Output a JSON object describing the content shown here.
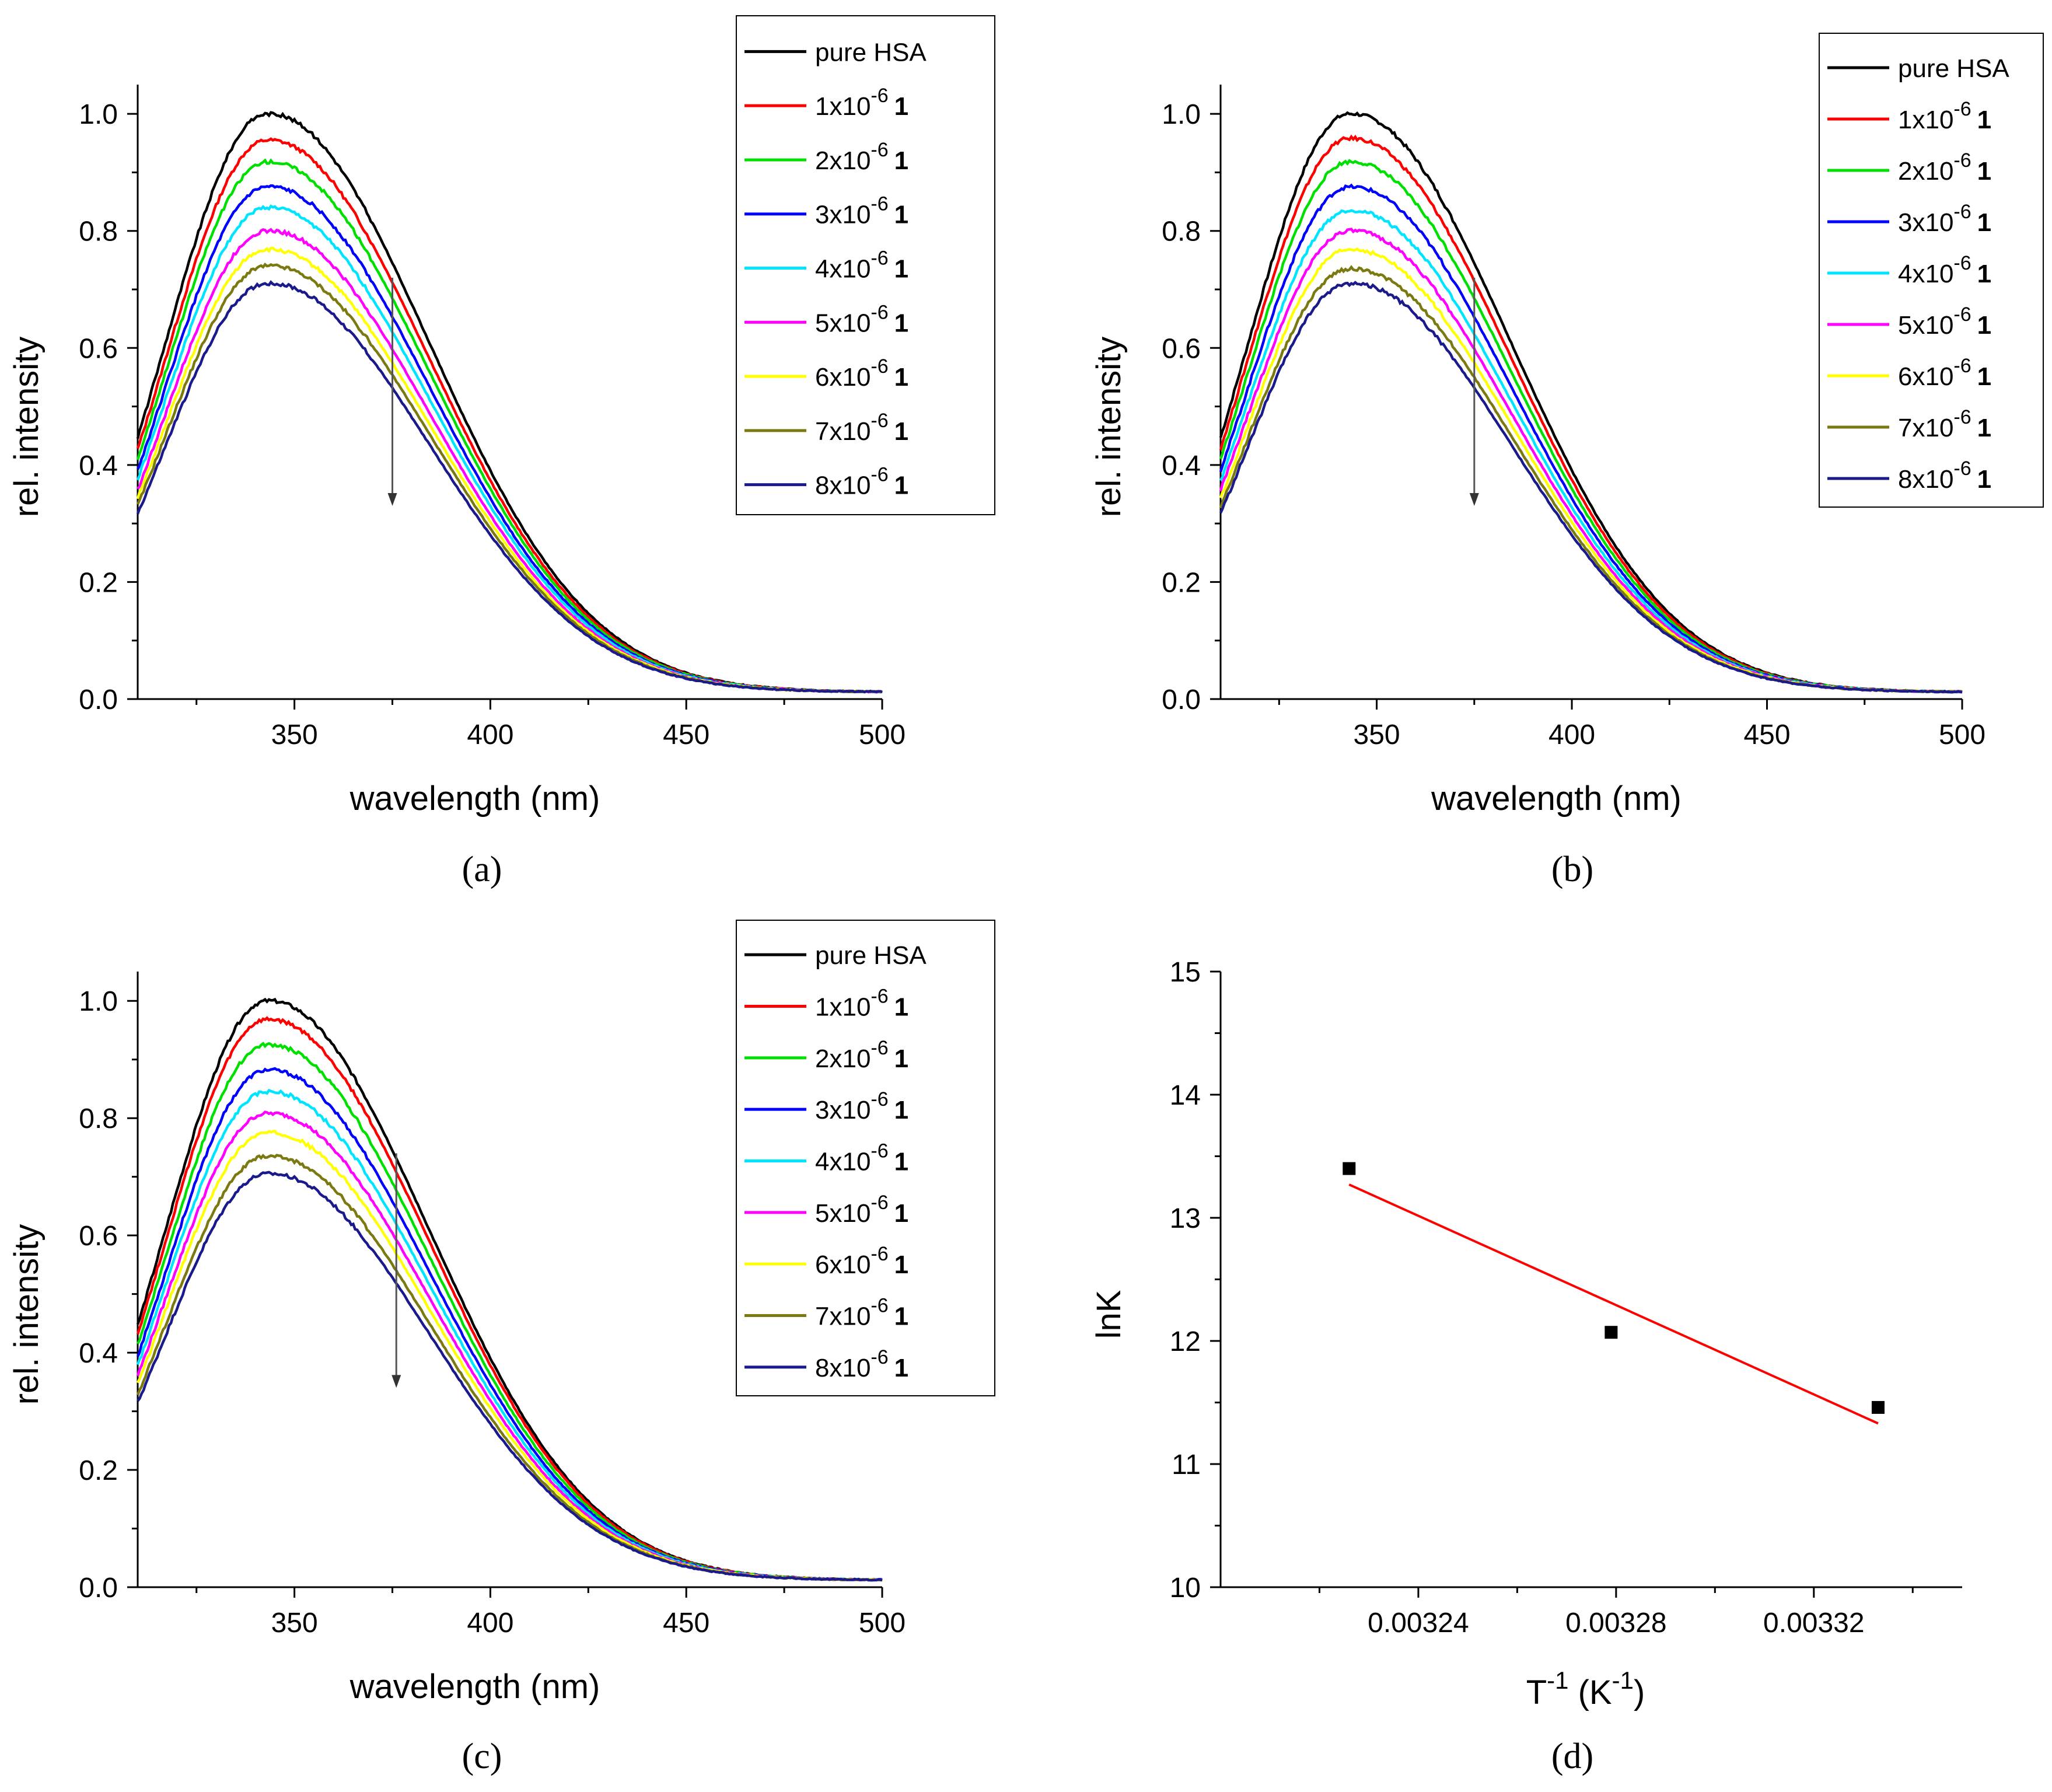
{
  "figure": {
    "description_labels": [
      "(a)",
      "(b)",
      "(c)",
      "(d)"
    ]
  },
  "chart_data": [
    {
      "id": "a",
      "type": "line",
      "caption": "(a)",
      "xlabel": "wavelength (nm)",
      "ylabel": "rel. intensity",
      "xlim": [
        310,
        500
      ],
      "ylim": [
        0,
        1.05
      ],
      "x_ticks": [
        350,
        400,
        450,
        500
      ],
      "y_ticks": [
        0.0,
        0.2,
        0.4,
        0.6,
        0.8,
        1.0
      ],
      "arrow": {
        "x": 375,
        "y_from": 0.72,
        "y_to": 0.33
      },
      "series": [
        {
          "name": "pure HSA",
          "legend": "pure HSA",
          "bold": "",
          "color": "#000000",
          "peak": 1.0
        },
        {
          "name": "1x10-6 1",
          "legend": "1x10",
          "exp": "-6",
          "bold": "1",
          "color": "#ff0000",
          "peak": 0.955
        },
        {
          "name": "2x10-6 1",
          "legend": "2x10",
          "exp": "-6",
          "bold": "1",
          "color": "#00e000",
          "peak": 0.918
        },
        {
          "name": "3x10-6 1",
          "legend": "3x10",
          "exp": "-6",
          "bold": "1",
          "color": "#0000ff",
          "peak": 0.875
        },
        {
          "name": "4x10-6 1",
          "legend": "4x10",
          "exp": "-6",
          "bold": "1",
          "color": "#00e5ff",
          "peak": 0.84
        },
        {
          "name": "5x10-6 1",
          "legend": "5x10",
          "exp": "-6",
          "bold": "1",
          "color": "#ff00ff",
          "peak": 0.8
        },
        {
          "name": "6x10-6 1",
          "legend": "6x10",
          "exp": "-6",
          "bold": "1",
          "color": "#ffff00",
          "peak": 0.768
        },
        {
          "name": "7x10-6 1",
          "legend": "7x10",
          "exp": "-6",
          "bold": "1",
          "color": "#7a7a10",
          "peak": 0.74
        },
        {
          "name": "8x10-6 1",
          "legend": "8x10",
          "exp": "-6",
          "bold": "1",
          "color": "#1a1a8c",
          "peak": 0.71
        }
      ]
    },
    {
      "id": "b",
      "type": "line",
      "caption": "(b)",
      "xlabel": "wavelength (nm)",
      "ylabel": "rel. intensity",
      "xlim": [
        310,
        500
      ],
      "ylim": [
        0,
        1.05
      ],
      "x_ticks": [
        350,
        400,
        450,
        500
      ],
      "y_ticks": [
        0.0,
        0.2,
        0.4,
        0.6,
        0.8,
        1.0
      ],
      "arrow": {
        "x": 375,
        "y_from": 0.72,
        "y_to": 0.33
      },
      "series": [
        {
          "name": "pure HSA",
          "legend": "pure HSA",
          "bold": "",
          "color": "#000000",
          "peak": 1.0
        },
        {
          "name": "1x10-6 1",
          "legend": "1x10",
          "exp": "-6",
          "bold": "1",
          "color": "#ff0000",
          "peak": 0.958
        },
        {
          "name": "2x10-6 1",
          "legend": "2x10",
          "exp": "-6",
          "bold": "1",
          "color": "#00e000",
          "peak": 0.918
        },
        {
          "name": "3x10-6 1",
          "legend": "3x10",
          "exp": "-6",
          "bold": "1",
          "color": "#0000ff",
          "peak": 0.875
        },
        {
          "name": "4x10-6 1",
          "legend": "4x10",
          "exp": "-6",
          "bold": "1",
          "color": "#00e5ff",
          "peak": 0.835
        },
        {
          "name": "5x10-6 1",
          "legend": "5x10",
          "exp": "-6",
          "bold": "1",
          "color": "#ff00ff",
          "peak": 0.8
        },
        {
          "name": "6x10-6 1",
          "legend": "6x10",
          "exp": "-6",
          "bold": "1",
          "color": "#ffff00",
          "peak": 0.768
        },
        {
          "name": "7x10-6 1",
          "legend": "7x10",
          "exp": "-6",
          "bold": "1",
          "color": "#7a7a10",
          "peak": 0.735
        },
        {
          "name": "8x10-6 1",
          "legend": "8x10",
          "exp": "-6",
          "bold": "1",
          "color": "#1a1a8c",
          "peak": 0.71
        }
      ]
    },
    {
      "id": "c",
      "type": "line",
      "caption": "(c)",
      "xlabel": "wavelength (nm)",
      "ylabel": "rel. intensity",
      "xlim": [
        310,
        500
      ],
      "ylim": [
        0,
        1.05
      ],
      "x_ticks": [
        350,
        400,
        450,
        500
      ],
      "y_ticks": [
        0.0,
        0.2,
        0.4,
        0.6,
        0.8,
        1.0
      ],
      "arrow": {
        "x": 376,
        "y_from": 0.74,
        "y_to": 0.34
      },
      "series": [
        {
          "name": "pure HSA",
          "legend": "pure HSA",
          "bold": "",
          "color": "#000000",
          "peak": 1.0
        },
        {
          "name": "1x10-6 1",
          "legend": "1x10",
          "exp": "-6",
          "bold": "1",
          "color": "#ff0000",
          "peak": 0.968
        },
        {
          "name": "2x10-6 1",
          "legend": "2x10",
          "exp": "-6",
          "bold": "1",
          "color": "#00e000",
          "peak": 0.925
        },
        {
          "name": "3x10-6 1",
          "legend": "3x10",
          "exp": "-6",
          "bold": "1",
          "color": "#0000ff",
          "peak": 0.882
        },
        {
          "name": "4x10-6 1",
          "legend": "4x10",
          "exp": "-6",
          "bold": "1",
          "color": "#00e5ff",
          "peak": 0.845
        },
        {
          "name": "5x10-6 1",
          "legend": "5x10",
          "exp": "-6",
          "bold": "1",
          "color": "#ff00ff",
          "peak": 0.808
        },
        {
          "name": "6x10-6 1",
          "legend": "6x10",
          "exp": "-6",
          "bold": "1",
          "color": "#ffff00",
          "peak": 0.775
        },
        {
          "name": "7x10-6 1",
          "legend": "7x10",
          "exp": "-6",
          "bold": "1",
          "color": "#7a7a10",
          "peak": 0.735
        },
        {
          "name": "8x10-6 1",
          "legend": "8x10",
          "exp": "-6",
          "bold": "1",
          "color": "#1a1a8c",
          "peak": 0.705
        }
      ]
    },
    {
      "id": "d",
      "type": "scatter",
      "caption": "(d)",
      "xlabel_base": "T",
      "xlabel_exp": "-1",
      "xlabel_mid": " (K",
      "xlabel_exp2": "-1",
      "xlabel_end": ")",
      "ylabel": "lnK",
      "xlim": [
        0.0032,
        0.00335
      ],
      "ylim": [
        10,
        15
      ],
      "x_ticks": [
        0.00324,
        0.00328,
        0.00332
      ],
      "x_tick_labels": [
        "0.00324",
        "0.00328",
        "0.00332"
      ],
      "x_minor_ticks": [
        0.00322,
        0.00326,
        0.0033,
        0.00334
      ],
      "y_ticks": [
        10,
        11,
        12,
        13,
        14,
        15
      ],
      "points": [
        {
          "x": 0.003226,
          "y": 13.4
        },
        {
          "x": 0.003279,
          "y": 12.07
        },
        {
          "x": 0.003333,
          "y": 11.46
        }
      ],
      "fit_line": {
        "x": [
          0.003226,
          0.003333
        ],
        "y": [
          13.27,
          11.33
        ],
        "color": "#ff0000"
      }
    }
  ]
}
